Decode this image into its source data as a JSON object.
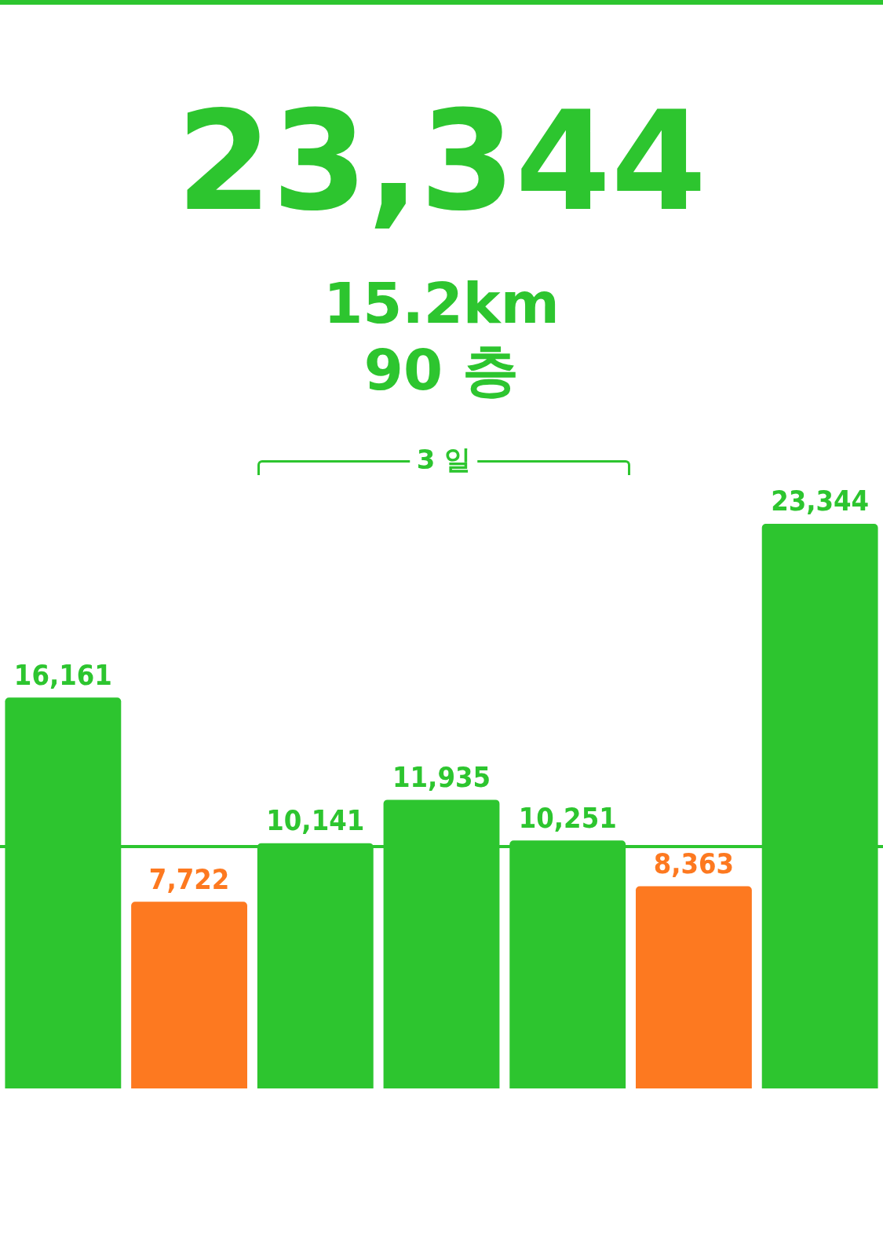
{
  "chart_data": {
    "type": "bar",
    "title": "23,344",
    "subtitle": "15.2km",
    "annotations": [
      "90 층",
      "3 일"
    ],
    "categories": [
      null,
      null,
      null,
      null,
      null,
      null,
      null
    ],
    "values": [
      16161,
      7722,
      10141,
      11935,
      10251,
      8363,
      23344
    ],
    "colors": [
      "#2dc52f",
      "#fd7920",
      "#2dc52f",
      "#2dc52f",
      "#2dc52f",
      "#fd7920",
      "#2dc52f"
    ],
    "value_labels": [
      "16,161",
      "7,722",
      "10,141",
      "11,935",
      "10,251",
      "8,363",
      "23,344"
    ],
    "tick_labels": false,
    "ref_lines": [
      {
        "axis": "y",
        "value": 10000,
        "color": "#2dc52f"
      }
    ]
  }
}
